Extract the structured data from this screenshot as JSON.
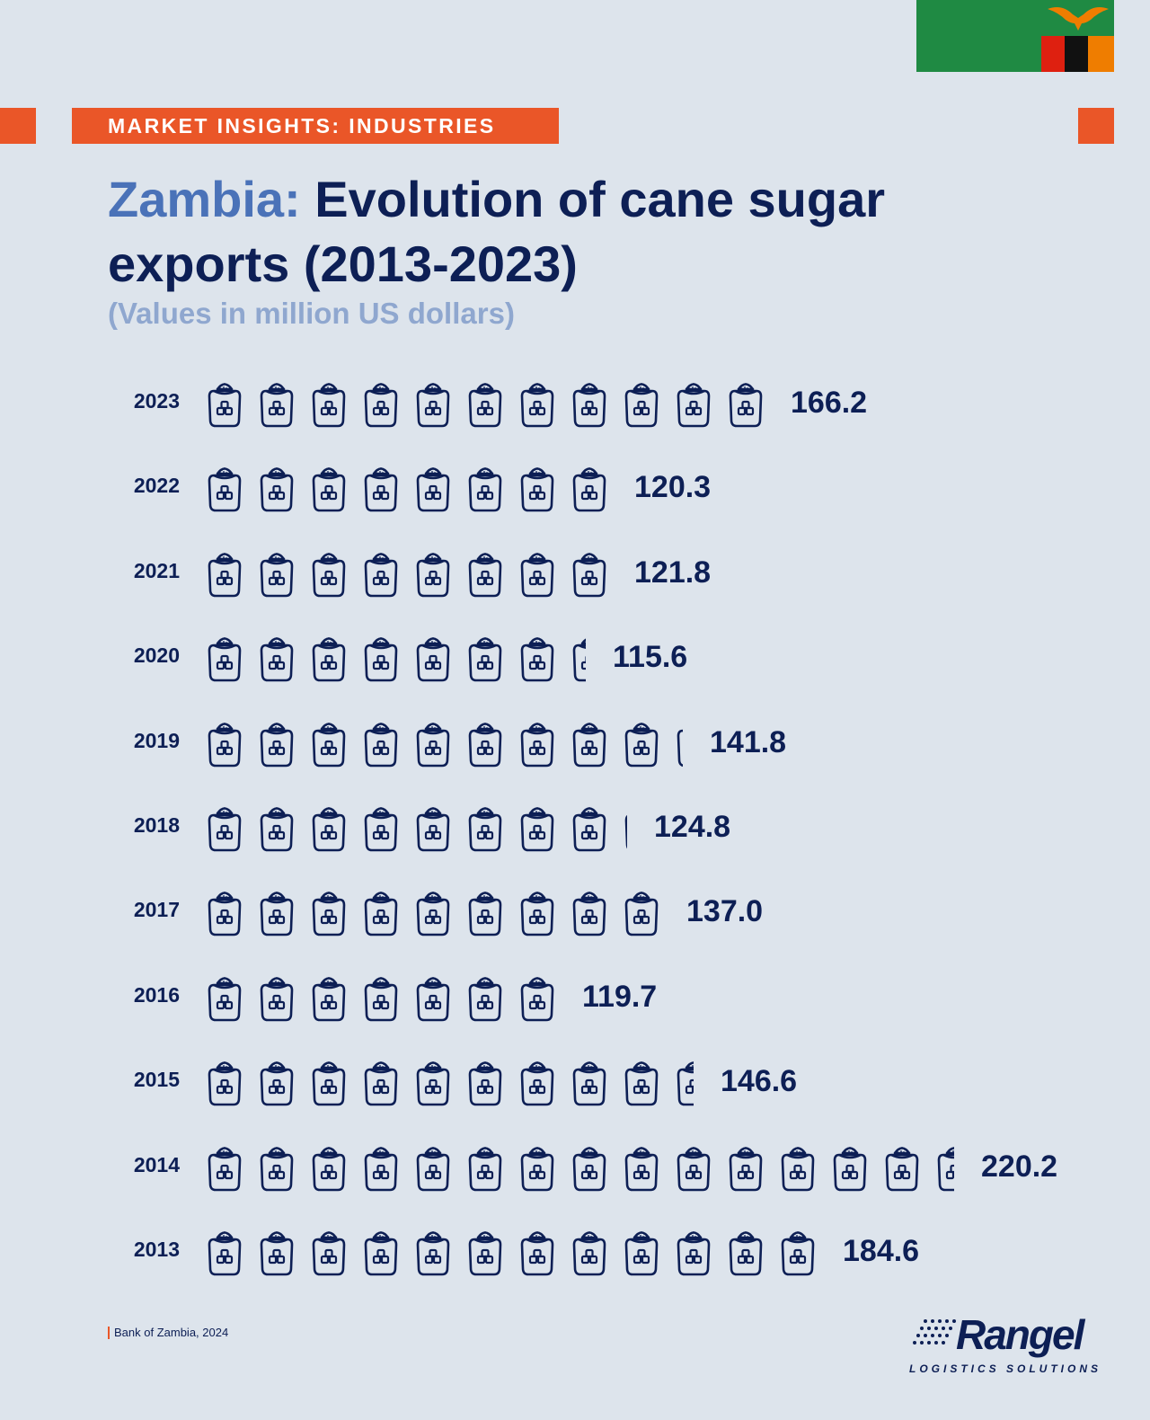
{
  "header": {
    "banner": "MARKET INSIGHTS: INDUSTRIES",
    "title_country": "Zambia:",
    "title_rest": " Evolution of cane sugar exports (2013-2023)",
    "subtitle": "(Values in million US dollars)"
  },
  "colors": {
    "background": "#dde4ec",
    "navy": "#0d1f55",
    "accent_orange": "#ea5628",
    "country_blue": "#4a72b8",
    "subtitle_blue": "#8fa7cf"
  },
  "icons": {
    "flag": "zambia-flag-icon",
    "unit": "sugar-sack-icon"
  },
  "chart_data": {
    "type": "bar",
    "categories": [
      "2023",
      "2022",
      "2021",
      "2020",
      "2019",
      "2018",
      "2017",
      "2016",
      "2015",
      "2014",
      "2013"
    ],
    "values": [
      166.2,
      120.3,
      121.8,
      115.6,
      141.8,
      124.8,
      137.0,
      119.7,
      146.6,
      220.2,
      184.6
    ],
    "value_labels": [
      "166.2",
      "120.3",
      "121.8",
      "115.6",
      "141.8",
      "124.8",
      "137.0",
      "119.7",
      "146.6",
      "220.2",
      "184.6"
    ],
    "icons_shown": [
      11,
      8,
      8,
      7.4,
      9.2,
      8.1,
      9,
      7,
      9.5,
      14.5,
      12
    ],
    "orientation": "horizontal pictogram",
    "grid": false,
    "legend": "none"
  },
  "footer": {
    "source": "Bank of Zambia, 2024",
    "logo_word": "Rangel",
    "logo_tagline": "LOGISTICS SOLUTIONS"
  }
}
